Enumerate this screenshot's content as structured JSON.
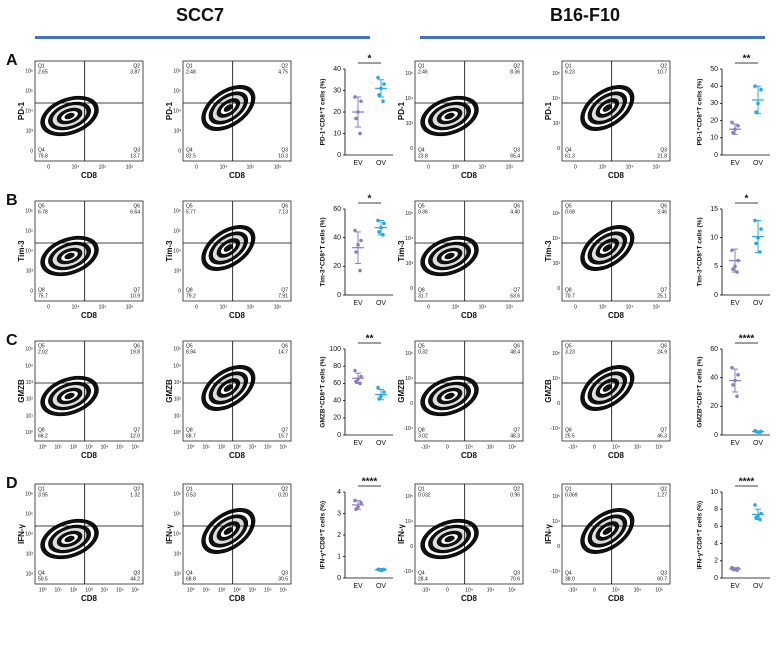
{
  "headers": [
    "SCC7",
    "B16-F10"
  ],
  "panels": [
    {
      "letter": "A",
      "cols": [
        {
          "ylabel": "PD-1",
          "xlabel": "CD8",
          "xticks": [
            "0",
            "10⁴",
            "10⁵",
            "10⁶"
          ],
          "yticks": [
            "10⁶",
            "10⁵",
            "10⁴",
            "10³",
            "0"
          ],
          "plots": [
            [
              [
                "Q1",
                "2.65"
              ],
              [
                "Q2",
                "3.87"
              ],
              [
                "Q4",
                "79.8"
              ],
              [
                "Q3",
                "13.7"
              ]
            ],
            [
              [
                "Q1",
                "2.48"
              ],
              [
                "Q2",
                "4.75"
              ],
              [
                "Q4",
                "82.5"
              ],
              [
                "Q3",
                "10.3"
              ]
            ]
          ]
        },
        {
          "ylabel": "PD-1",
          "xlabel": "CD8",
          "xticks": [
            "0",
            "10³",
            "10⁴",
            "10⁵"
          ],
          "yticks": [
            "10⁵",
            "10⁴",
            "10³",
            "0"
          ],
          "plots": [
            [
              [
                "Q1",
                "2.46"
              ],
              [
                "Q2",
                "8.36"
              ],
              [
                "Q4",
                "23.8"
              ],
              [
                "Q3",
                "65.4"
              ]
            ],
            [
              [
                "Q1",
                "6.23"
              ],
              [
                "Q2",
                "10.7"
              ],
              [
                "Q4",
                "61.3"
              ],
              [
                "Q3",
                "21.8"
              ]
            ]
          ]
        }
      ]
    },
    {
      "letter": "B",
      "cols": [
        {
          "ylabel": "Tim-3",
          "xlabel": "CD8",
          "xticks": [
            "0",
            "10⁴",
            "10⁵",
            "10⁶"
          ],
          "yticks": [
            "10⁶",
            "10⁵",
            "10⁴",
            "10³",
            "0"
          ],
          "plots": [
            [
              [
                "Q5",
                "6.78"
              ],
              [
                "Q6",
                "6.64"
              ],
              [
                "Q8",
                "75.7"
              ],
              [
                "Q7",
                "10.9"
              ]
            ],
            [
              [
                "Q5",
                "5.77"
              ],
              [
                "Q6",
                "7.13"
              ],
              [
                "Q8",
                "79.2"
              ],
              [
                "Q7",
                "7.91"
              ]
            ]
          ]
        },
        {
          "ylabel": "Tim-3",
          "xlabel": "CD8",
          "xticks": [
            "0",
            "10³",
            "10⁴",
            "10⁵"
          ],
          "yticks": [
            "10⁵",
            "10⁴",
            "10³",
            "0"
          ],
          "plots": [
            [
              [
                "Q5",
                "0.36"
              ],
              [
                "Q6",
                "4.40"
              ],
              [
                "Q8",
                "31.7"
              ],
              [
                "Q7",
                "63.6"
              ]
            ],
            [
              [
                "Q5",
                "0.68"
              ],
              [
                "Q6",
                "3.46"
              ],
              [
                "Q8",
                "70.7"
              ],
              [
                "Q7",
                "25.1"
              ]
            ]
          ]
        }
      ]
    },
    {
      "letter": "C",
      "cols": [
        {
          "ylabel": "GMZB",
          "xlabel": "CD8",
          "xticks": [
            "10⁰",
            "10¹",
            "10²",
            "10³",
            "10⁴",
            "10⁵",
            "10⁶"
          ],
          "yticks": [
            "10⁵",
            "10⁴",
            "10³",
            "10²",
            "10¹",
            "10⁰"
          ],
          "plots": [
            [
              [
                "Q5",
                "2.02"
              ],
              [
                "Q6",
                "19.8"
              ],
              [
                "Q8",
                "66.2"
              ],
              [
                "Q7",
                "12.0"
              ]
            ],
            [
              [
                "Q5",
                "8.94"
              ],
              [
                "Q6",
                "14.7"
              ],
              [
                "Q8",
                "68.7"
              ],
              [
                "Q7",
                "15.7"
              ]
            ]
          ]
        },
        {
          "ylabel": "GMZB",
          "xlabel": "CD8",
          "xticks": [
            "-10⁴",
            "0",
            "10⁴",
            "10⁵",
            "10⁶"
          ],
          "yticks": [
            "10⁵",
            "10⁴",
            "0",
            "-10⁴"
          ],
          "plots": [
            [
              [
                "Q5",
                "0.32"
              ],
              [
                "Q6",
                "48.4"
              ],
              [
                "Q8",
                "3.02"
              ],
              [
                "Q7",
                "48.3"
              ]
            ],
            [
              [
                "Q5",
                "3.23"
              ],
              [
                "Q6",
                "24.9"
              ],
              [
                "Q8",
                "25.5"
              ],
              [
                "Q7",
                "46.3"
              ]
            ]
          ]
        }
      ]
    },
    {
      "letter": "D",
      "cols": [
        {
          "ylabel": "IFN-γ",
          "xlabel": "CD8",
          "xticks": [
            "10⁰",
            "10¹",
            "10²",
            "10³",
            "10⁴",
            "10⁵",
            "10⁶"
          ],
          "yticks": [
            "10⁶",
            "10⁵",
            "10⁴",
            "10³",
            "10²"
          ],
          "plots": [
            [
              [
                "Q1",
                "3.95"
              ],
              [
                "Q2",
                "1.32"
              ],
              [
                "Q4",
                "50.5"
              ],
              [
                "Q3",
                "44.2"
              ]
            ],
            [
              [
                "Q1",
                "0.53"
              ],
              [
                "Q2",
                "0.20"
              ],
              [
                "Q4",
                "68.8"
              ],
              [
                "Q3",
                "30.5"
              ]
            ]
          ]
        },
        {
          "ylabel": "IFN-γ",
          "xlabel": "CD8",
          "xticks": [
            "-10⁴",
            "0",
            "10⁴",
            "10⁵",
            "10⁶"
          ],
          "yticks": [
            "10⁵",
            "10⁴",
            "0",
            "-10⁴"
          ],
          "plots": [
            [
              [
                "Q1",
                "0.032"
              ],
              [
                "Q2",
                "0.96"
              ],
              [
                "Q4",
                "28.4"
              ],
              [
                "Q3",
                "70.6"
              ]
            ],
            [
              [
                "Q1",
                "0.069"
              ],
              [
                "Q2",
                "1.27"
              ],
              [
                "Q4",
                "38.0"
              ],
              [
                "Q3",
                "60.7"
              ]
            ]
          ]
        }
      ]
    }
  ],
  "chart_data": [
    {
      "type": "strip",
      "ylabel": "PD-1⁺CD8⁺T cells (%)",
      "categories": [
        "EV",
        "OV"
      ],
      "ylim": [
        0,
        40
      ],
      "yticks": [
        0,
        10,
        20,
        30,
        40
      ],
      "annotation": "*",
      "groups": [
        {
          "color": "#8e7cc3",
          "values": [
            27,
            25,
            20,
            17,
            10
          ],
          "mean": 20,
          "sd": 7
        },
        {
          "color": "#29a8e0",
          "values": [
            36,
            33,
            31,
            28,
            25
          ],
          "mean": 31,
          "sd": 4
        }
      ]
    },
    {
      "type": "strip",
      "ylabel": "PD-1⁺CD8⁺T cells (%)",
      "categories": [
        "EV",
        "OV"
      ],
      "ylim": [
        0,
        50
      ],
      "yticks": [
        0,
        10,
        20,
        30,
        40,
        50
      ],
      "annotation": "**",
      "groups": [
        {
          "color": "#8e7cc3",
          "values": [
            19,
            17,
            15,
            13
          ],
          "mean": 15,
          "sd": 3
        },
        {
          "color": "#29a8e0",
          "values": [
            40,
            38,
            30,
            25
          ],
          "mean": 32,
          "sd": 8
        }
      ]
    },
    {
      "type": "strip",
      "ylabel": "Tim-3⁺CD8⁺T cells (%)",
      "categories": [
        "EV",
        "OV"
      ],
      "ylim": [
        0,
        60
      ],
      "yticks": [
        0,
        20,
        40,
        60
      ],
      "annotation": "*",
      "groups": [
        {
          "color": "#8e7cc3",
          "values": [
            45,
            38,
            35,
            30,
            17
          ],
          "mean": 33,
          "sd": 11
        },
        {
          "color": "#29a8e0",
          "values": [
            52,
            50,
            47,
            44,
            42
          ],
          "mean": 47,
          "sd": 5
        }
      ]
    },
    {
      "type": "strip",
      "ylabel": "Tim-3⁺CD8⁺T cells (%)",
      "categories": [
        "EV",
        "OV"
      ],
      "ylim": [
        0,
        15
      ],
      "yticks": [
        0,
        5,
        10,
        15
      ],
      "annotation": "*",
      "groups": [
        {
          "color": "#8e7cc3",
          "values": [
            7.8,
            6,
            5,
            4.5,
            4
          ],
          "mean": 6,
          "sd": 2
        },
        {
          "color": "#29a8e0",
          "values": [
            13,
            11.5,
            10,
            9,
            7.5
          ],
          "mean": 10.2,
          "sd": 2.8
        }
      ]
    },
    {
      "type": "strip",
      "ylabel": "GMZB⁺CD8⁺T cells (%)",
      "categories": [
        "EV",
        "OV"
      ],
      "ylim": [
        0,
        100
      ],
      "yticks": [
        0,
        20,
        40,
        60,
        80,
        100
      ],
      "annotation": "**",
      "groups": [
        {
          "color": "#8e7cc3",
          "values": [
            75,
            68,
            65,
            62,
            60
          ],
          "mean": 66,
          "sd": 6
        },
        {
          "color": "#29a8e0",
          "values": [
            55,
            50,
            45,
            42
          ],
          "mean": 47,
          "sd": 6
        }
      ]
    },
    {
      "type": "strip",
      "ylabel": "GMZB⁺CD8⁺T cells (%)",
      "categories": [
        "EV",
        "OV"
      ],
      "ylim": [
        0,
        60
      ],
      "yticks": [
        0,
        20,
        40,
        60
      ],
      "annotation": "****",
      "groups": [
        {
          "color": "#8e7cc3",
          "values": [
            47,
            42,
            38,
            35,
            27
          ],
          "mean": 38,
          "sd": 8
        },
        {
          "color": "#29a8e0",
          "values": [
            3,
            2.5,
            2,
            2.5,
            2
          ],
          "mean": 2.4,
          "sd": 0.4
        }
      ]
    },
    {
      "type": "strip",
      "ylabel": "IFN-γ⁺CD8⁺T cells (%)",
      "categories": [
        "EV",
        "OV"
      ],
      "ylim": [
        0,
        4
      ],
      "yticks": [
        0,
        1,
        2,
        3,
        4
      ],
      "annotation": "****",
      "groups": [
        {
          "color": "#8e7cc3",
          "values": [
            3.6,
            3.5,
            3.3,
            3.2
          ],
          "mean": 3.4,
          "sd": 0.2
        },
        {
          "color": "#29a8e0",
          "values": [
            0.4,
            0.4,
            0.35,
            0.4,
            0.38
          ],
          "mean": 0.39,
          "sd": 0.05
        }
      ]
    },
    {
      "type": "strip",
      "ylabel": "IFN-γ⁺CD8⁺T cells (%)",
      "categories": [
        "EV",
        "OV"
      ],
      "ylim": [
        0,
        10
      ],
      "yticks": [
        0,
        2,
        4,
        6,
        8,
        10
      ],
      "annotation": "****",
      "groups": [
        {
          "color": "#8e7cc3",
          "values": [
            1.2,
            1.1,
            1.0,
            1.0,
            0.9
          ],
          "mean": 1.05,
          "sd": 0.15
        },
        {
          "color": "#29a8e0",
          "values": [
            8.5,
            7.5,
            7.2,
            7,
            6.8
          ],
          "mean": 7.4,
          "sd": 0.6
        }
      ]
    }
  ]
}
